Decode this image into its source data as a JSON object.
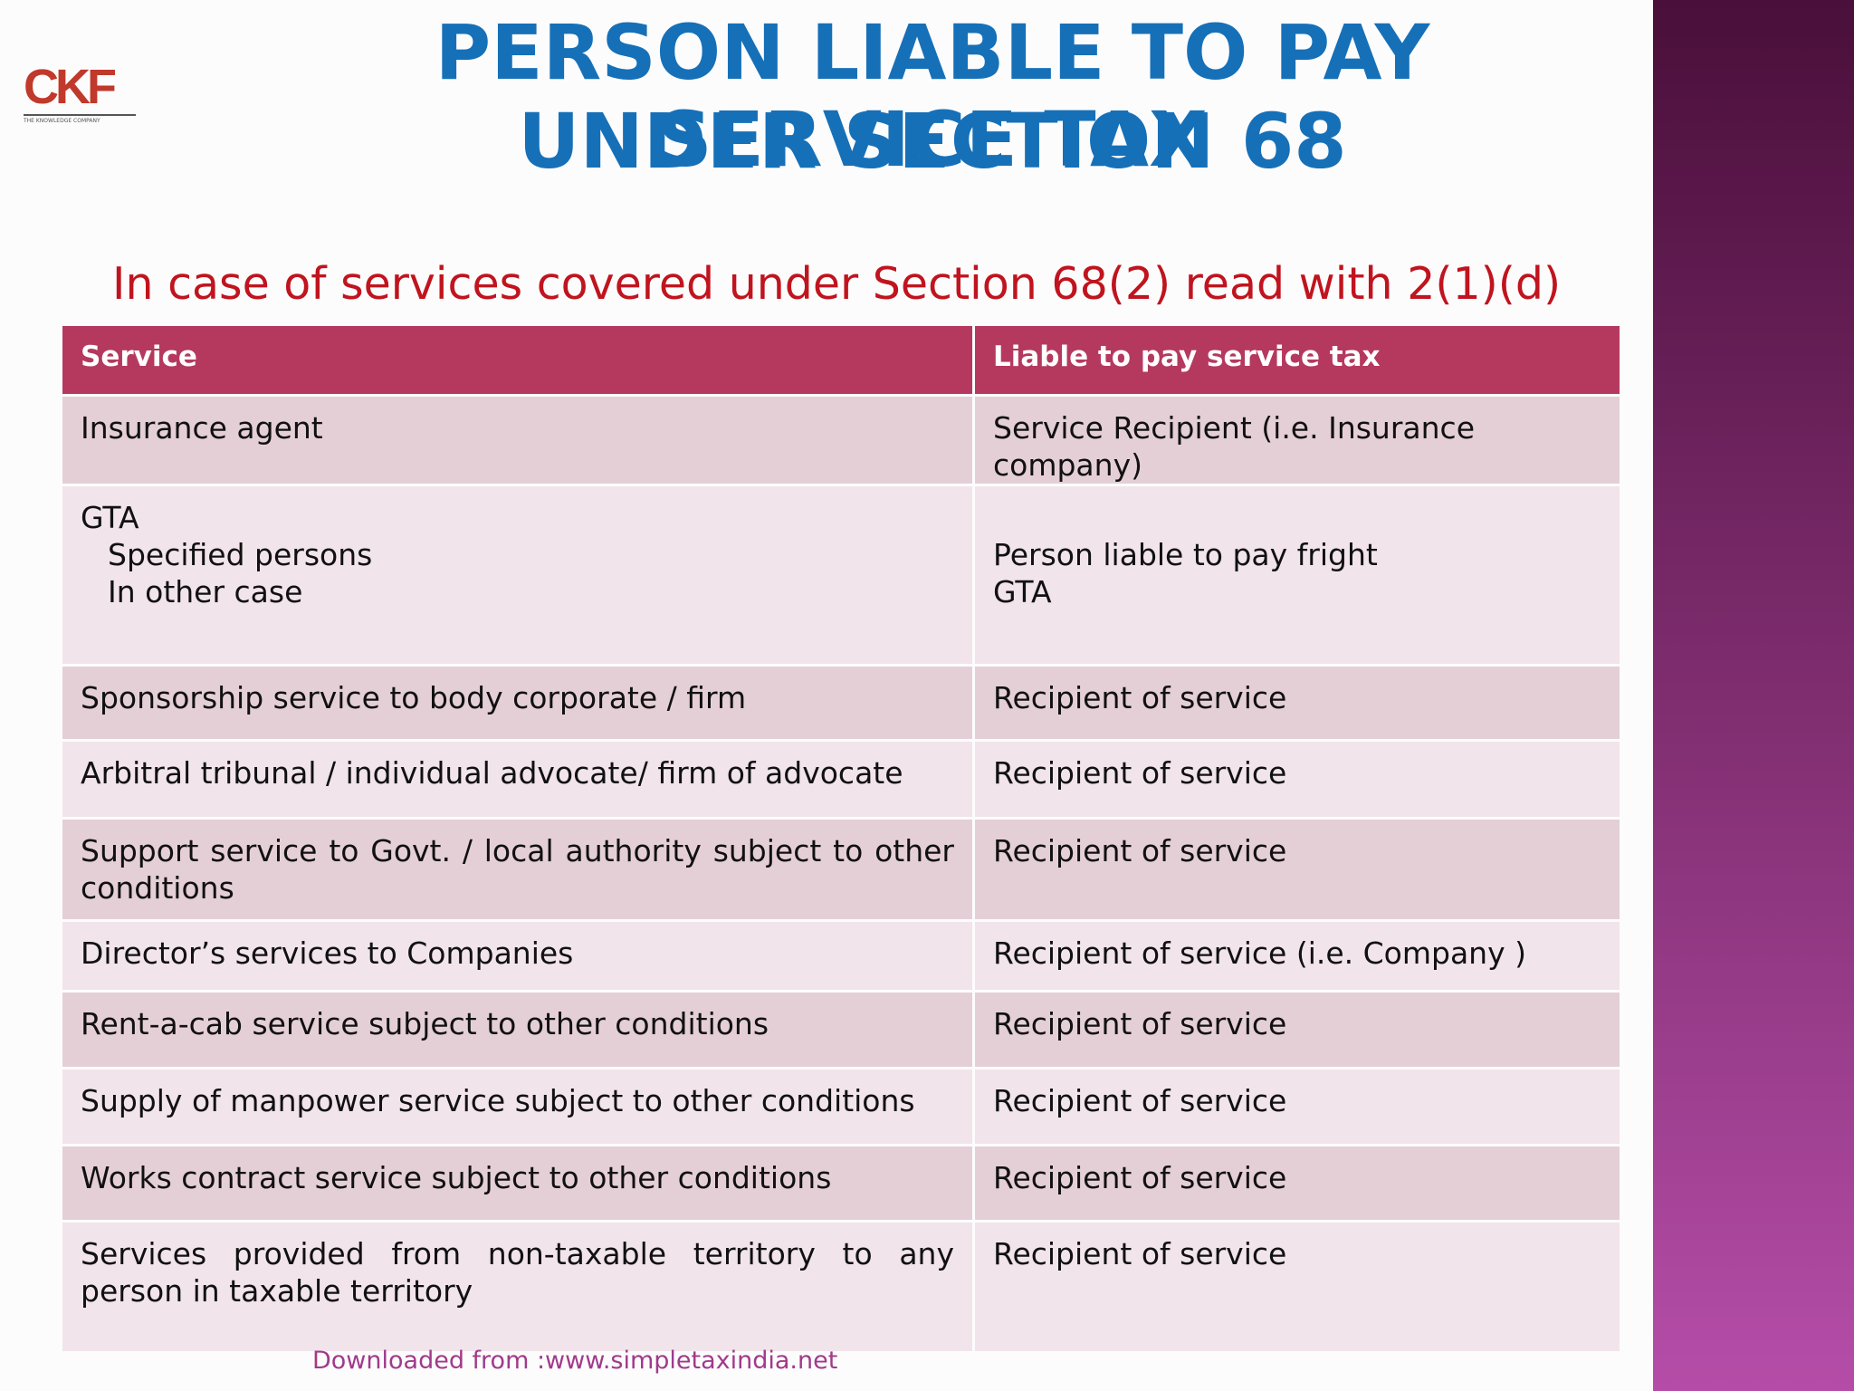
{
  "logo": {
    "text": "CKF",
    "tagline": "THE KNOWLEDGE COMPANY"
  },
  "title": [
    "PERSON  LIABLE TO PAY SERVICE TAX",
    "UNDER SECTION 68"
  ],
  "subtitle": "In case of services covered under Section 68(2) read with 2(1)(d)",
  "table": {
    "header": [
      "Service",
      "Liable to pay service tax"
    ],
    "rows": [
      [
        [
          "Insurance agent"
        ],
        [
          "Service Recipient (i.e. Insurance company)"
        ]
      ],
      [
        [
          "GTA",
          "Specified persons",
          "In other case"
        ],
        [
          "Person liable to pay fright",
          "GTA"
        ]
      ],
      [
        [
          "Sponsorship service to body corporate / firm"
        ],
        [
          "Recipient of service"
        ]
      ],
      [
        [
          "Arbitral tribunal / individual advocate/ firm of advocate"
        ],
        [
          "Recipient of service"
        ]
      ],
      [
        [
          "Support service to Govt. / local authority subject to other conditions"
        ],
        [
          "Recipient of service"
        ]
      ],
      [
        [
          "Director’s  services to Companies"
        ],
        [
          "Recipient of service  (i.e. Company )"
        ]
      ],
      [
        [
          "Rent-a-cab service subject to other conditions"
        ],
        [
          "Recipient of service"
        ]
      ],
      [
        [
          "Supply of manpower service subject to other conditions"
        ],
        [
          "Recipient of service"
        ]
      ],
      [
        [
          "Works contract service subject to other conditions"
        ],
        [
          "Recipient of service"
        ]
      ],
      [
        [
          "Services provided from non-taxable territory to any person in taxable territory"
        ],
        [
          "Recipient of service"
        ]
      ]
    ]
  },
  "footer": "Downloaded from :www.simpletaxindia.net"
}
